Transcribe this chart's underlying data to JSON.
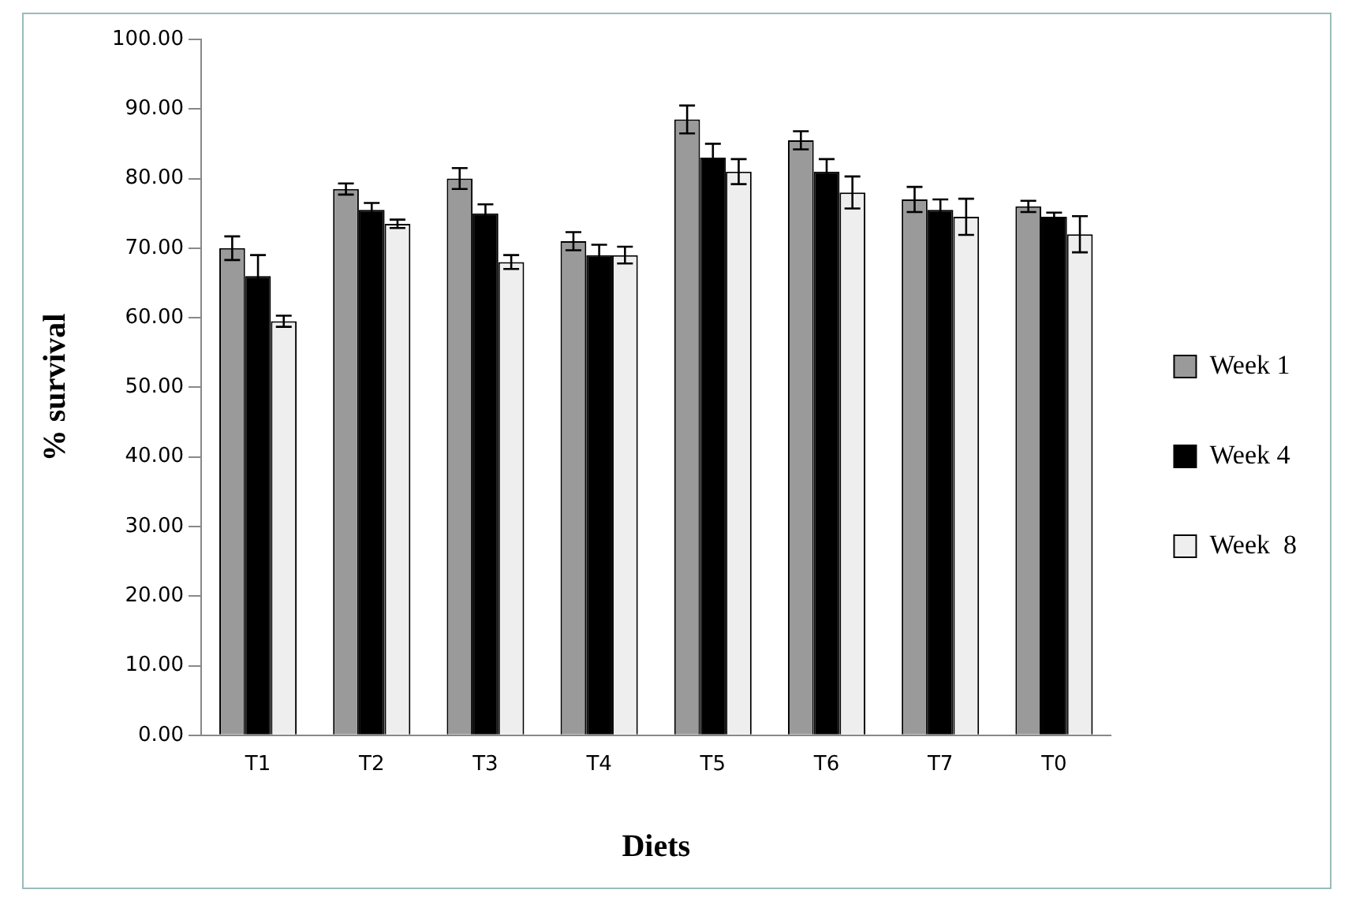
{
  "chart_data": {
    "type": "bar",
    "xlabel": "Diets",
    "ylabel": "% survival",
    "categories": [
      "T1",
      "T2",
      "T3",
      "T4",
      "T5",
      "T6",
      "T7",
      "T0"
    ],
    "series": [
      {
        "name": "Week 1",
        "color": "#9a9a9a",
        "values": [
          70,
          78.5,
          80,
          71,
          88.5,
          85.5,
          77,
          76
        ],
        "errors": [
          1.7,
          0.8,
          1.5,
          1.3,
          2,
          1.3,
          1.8,
          0.8
        ]
      },
      {
        "name": "Week 4",
        "color": "#000000",
        "values": [
          66,
          75.5,
          75,
          69,
          83,
          81,
          75.5,
          74.5
        ],
        "errors": [
          3,
          1,
          1.3,
          1.5,
          2,
          1.8,
          1.5,
          0.6
        ]
      },
      {
        "name": "Week  8",
        "color": "#eeeeee",
        "values": [
          59.5,
          73.5,
          68,
          69,
          81,
          78,
          74.5,
          72
        ],
        "errors": [
          0.8,
          0.6,
          1,
          1.2,
          1.8,
          2.3,
          2.6,
          2.6
        ]
      }
    ],
    "ylim": [
      0,
      100
    ],
    "yticks": [
      {
        "value": 0,
        "label": "0.00"
      },
      {
        "value": 10,
        "label": "10.00"
      },
      {
        "value": 20,
        "label": "20.00"
      },
      {
        "value": 30,
        "label": "30.00"
      },
      {
        "value": 40,
        "label": "40.00"
      },
      {
        "value": 50,
        "label": "50.00"
      },
      {
        "value": 60,
        "label": "60.00"
      },
      {
        "value": 70,
        "label": "70.00"
      },
      {
        "value": 80,
        "label": "80.00"
      },
      {
        "value": 90,
        "label": "90.00"
      },
      {
        "value": 100,
        "label": "100.00"
      }
    ],
    "grid": false,
    "legend": "right"
  }
}
